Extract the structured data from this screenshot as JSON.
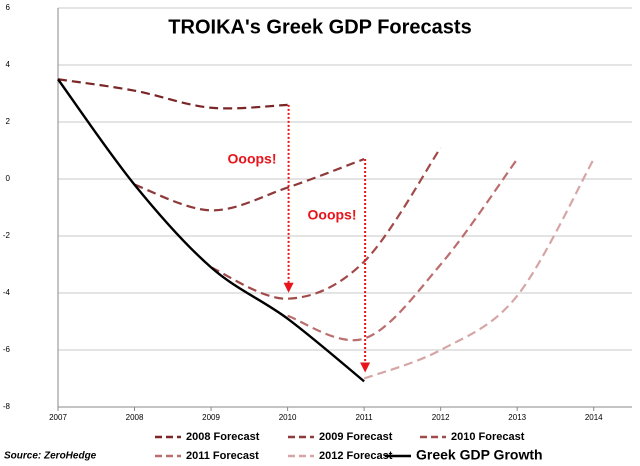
{
  "chart_data": {
    "type": "line",
    "title": "TROIKA's Greek GDP Forecasts",
    "source": "Source: ZeroHedge",
    "annotations": [
      "Ooops!",
      "Ooops!"
    ],
    "x": [
      2007,
      2008,
      2009,
      2010,
      2011,
      2012,
      2013,
      2014
    ],
    "xlim": [
      2007,
      2014.5
    ],
    "xticks": [
      2007,
      2008,
      2009,
      2010,
      2011,
      2012,
      2013,
      2014
    ],
    "ylim": [
      -8,
      6
    ],
    "yticks": [
      -8,
      -6,
      -4,
      -2,
      0,
      2,
      4,
      6
    ],
    "grid": true,
    "series": [
      {
        "name": "2008 Forecast",
        "color": "#7a2626",
        "dashed": true,
        "values": [
          3.5,
          3.1,
          2.5,
          2.6,
          null,
          null,
          null,
          null
        ]
      },
      {
        "name": "2009 Forecast",
        "color": "#8e3a3a",
        "dashed": true,
        "values": [
          null,
          -0.2,
          -1.1,
          -0.3,
          0.7,
          null,
          null,
          null
        ]
      },
      {
        "name": "2010 Forecast",
        "color": "#a24a4a",
        "dashed": true,
        "values": [
          null,
          null,
          -3.1,
          -4.2,
          -2.9,
          1.1,
          null,
          null
        ]
      },
      {
        "name": "2011 Forecast",
        "color": "#bb6e6e",
        "dashed": true,
        "values": [
          null,
          null,
          null,
          -4.8,
          -5.6,
          -3.0,
          0.7,
          null
        ]
      },
      {
        "name": "2012 Forecast",
        "color": "#d6a6a6",
        "dashed": true,
        "values": [
          null,
          null,
          null,
          null,
          -7.0,
          -6.0,
          -4.1,
          0.7
        ]
      },
      {
        "name": "Greek GDP Growth",
        "color": "#000000",
        "dashed": false,
        "values": [
          3.5,
          -0.2,
          -3.1,
          -4.9,
          -7.1,
          null,
          null,
          null
        ]
      }
    ]
  }
}
